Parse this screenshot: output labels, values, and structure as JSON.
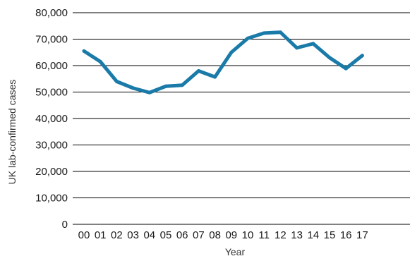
{
  "chart_data": {
    "type": "line",
    "title": "",
    "xlabel": "Year",
    "ylabel": "UK lab-confirmed cases",
    "categories": [
      "00",
      "01",
      "02",
      "03",
      "04",
      "05",
      "06",
      "07",
      "08",
      "09",
      "10",
      "11",
      "12",
      "13",
      "14",
      "15",
      "16",
      "17"
    ],
    "series": [
      {
        "values": [
          65500,
          61500,
          54000,
          51500,
          49800,
          52200,
          52600,
          58000,
          55700,
          65000,
          70300,
          72300,
          72600,
          66700,
          68300,
          63000,
          58900,
          63800
        ]
      }
    ],
    "y_ticks": [
      "0",
      "10,000",
      "20,000",
      "30,000",
      "40,000",
      "50,000",
      "60,000",
      "70,000",
      "80,000"
    ],
    "ylim": [
      0,
      80000
    ],
    "grid": "horizontal",
    "colors": {
      "line": "#1a7aa8",
      "grid": "#000000"
    }
  }
}
